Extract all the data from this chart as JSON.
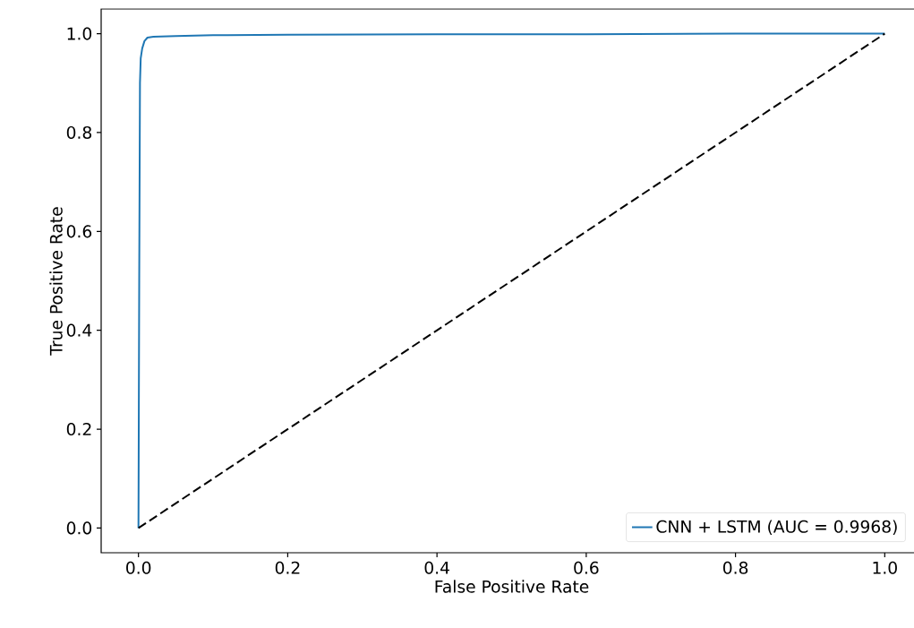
{
  "chart_data": {
    "type": "line",
    "xlabel": "False Positive Rate",
    "ylabel": "True Positive Rate",
    "xlim": [
      -0.05,
      1.05
    ],
    "ylim": [
      -0.05,
      1.05
    ],
    "xticks": [
      {
        "value": 0,
        "label": "0.0"
      },
      {
        "value": 0.2,
        "label": "0.2"
      },
      {
        "value": 0.4,
        "label": "0.4"
      },
      {
        "value": 0.6,
        "label": "0.6"
      },
      {
        "value": 0.8,
        "label": "0.8"
      },
      {
        "value": 1,
        "label": "1.0"
      }
    ],
    "yticks": [
      {
        "value": 0,
        "label": "0.0"
      },
      {
        "value": 0.2,
        "label": "0.2"
      },
      {
        "value": 0.4,
        "label": "0.4"
      },
      {
        "value": 0.6,
        "label": "0.6"
      },
      {
        "value": 0.8,
        "label": "0.8"
      },
      {
        "value": 1,
        "label": "1.0"
      }
    ],
    "grid": false,
    "legend": "bottom right",
    "series": [
      {
        "name": "CNN + LSTM (AUC = 0.9968)",
        "color": "#1f77b4",
        "line_style": "solid",
        "x": [
          0,
          0.001,
          0.002,
          0.003,
          0.005,
          0.008,
          0.012,
          0.02,
          0.05,
          0.1,
          0.2,
          0.4,
          0.6,
          0.8,
          1
        ],
        "values": [
          0,
          0.5,
          0.9,
          0.95,
          0.97,
          0.985,
          0.992,
          0.994,
          0.995,
          0.997,
          0.998,
          0.999,
          0.999,
          1,
          1
        ]
      },
      {
        "color": "#000000",
        "line_style": "dashed",
        "x": [
          0,
          1
        ],
        "values": [
          0,
          1
        ]
      }
    ]
  }
}
